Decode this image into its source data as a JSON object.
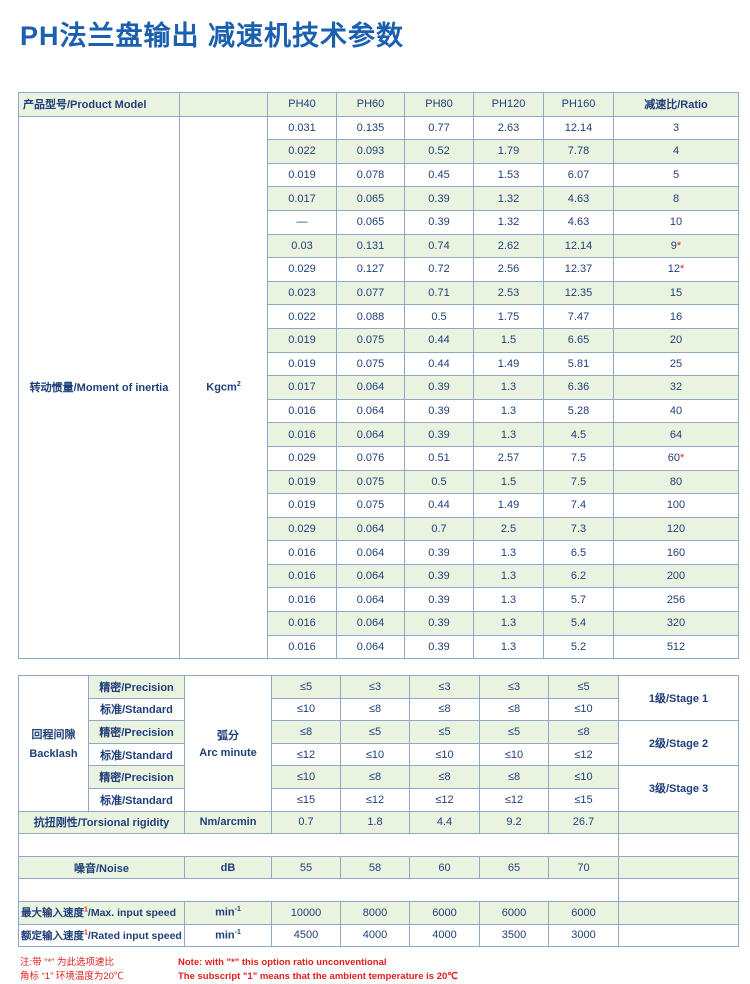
{
  "title": "PH法兰盘输出 减速机技术参数",
  "colors": {
    "title": "#1a5fb0",
    "text": "#1f3f7a",
    "stripe": "#eaf3df",
    "note": "#e0201b"
  },
  "t1": {
    "model_label": "产品型号/Product Model",
    "models": [
      "PH40",
      "PH60",
      "PH80",
      "PH120",
      "PH160"
    ],
    "ratio_label": "减速比/Ratio",
    "inertia_label": "转动惯量/Moment of inertia",
    "inertia_unit": "Kgcm",
    "inertia_unit_sup": "2",
    "rows": [
      {
        "v": [
          "0.031",
          "0.135",
          "0.77",
          "2.63",
          "12.14"
        ],
        "r": "3",
        "s": ""
      },
      {
        "v": [
          "0.022",
          "0.093",
          "0.52",
          "1.79",
          "7.78"
        ],
        "r": "4",
        "s": ""
      },
      {
        "v": [
          "0.019",
          "0.078",
          "0.45",
          "1.53",
          "6.07"
        ],
        "r": "5",
        "s": ""
      },
      {
        "v": [
          "0.017",
          "0.065",
          "0.39",
          "1.32",
          "4.63"
        ],
        "r": "8",
        "s": ""
      },
      {
        "v": [
          "—",
          "0.065",
          "0.39",
          "1.32",
          "4.63"
        ],
        "r": "10",
        "s": ""
      },
      {
        "v": [
          "0.03",
          "0.131",
          "0.74",
          "2.62",
          "12.14"
        ],
        "r": "9",
        "s": "*"
      },
      {
        "v": [
          "0.029",
          "0.127",
          "0.72",
          "2.56",
          "12.37"
        ],
        "r": "12",
        "s": "*"
      },
      {
        "v": [
          "0.023",
          "0.077",
          "0.71",
          "2.53",
          "12.35"
        ],
        "r": "15",
        "s": ""
      },
      {
        "v": [
          "0.022",
          "0.088",
          "0.5",
          "1.75",
          "7.47"
        ],
        "r": "16",
        "s": ""
      },
      {
        "v": [
          "0.019",
          "0.075",
          "0.44",
          "1.5",
          "6.65"
        ],
        "r": "20",
        "s": ""
      },
      {
        "v": [
          "0.019",
          "0.075",
          "0.44",
          "1.49",
          "5.81"
        ],
        "r": "25",
        "s": ""
      },
      {
        "v": [
          "0.017",
          "0.064",
          "0.39",
          "1.3",
          "6.36"
        ],
        "r": "32",
        "s": ""
      },
      {
        "v": [
          "0.016",
          "0.064",
          "0.39",
          "1.3",
          "5.28"
        ],
        "r": "40",
        "s": ""
      },
      {
        "v": [
          "0.016",
          "0.064",
          "0.39",
          "1.3",
          "4.5"
        ],
        "r": "64",
        "s": ""
      },
      {
        "v": [
          "0.029",
          "0.076",
          "0.51",
          "2.57",
          "7.5"
        ],
        "r": "60",
        "s": "*"
      },
      {
        "v": [
          "0.019",
          "0.075",
          "0.5",
          "1.5",
          "7.5"
        ],
        "r": "80",
        "s": ""
      },
      {
        "v": [
          "0.019",
          "0.075",
          "0.44",
          "1.49",
          "7.4"
        ],
        "r": "100",
        "s": ""
      },
      {
        "v": [
          "0.029",
          "0.064",
          "0.7",
          "2.5",
          "7.3"
        ],
        "r": "120",
        "s": ""
      },
      {
        "v": [
          "0.016",
          "0.064",
          "0.39",
          "1.3",
          "6.5"
        ],
        "r": "160",
        "s": ""
      },
      {
        "v": [
          "0.016",
          "0.064",
          "0.39",
          "1.3",
          "6.2"
        ],
        "r": "200",
        "s": ""
      },
      {
        "v": [
          "0.016",
          "0.064",
          "0.39",
          "1.3",
          "5.7"
        ],
        "r": "256",
        "s": ""
      },
      {
        "v": [
          "0.016",
          "0.064",
          "0.39",
          "1.3",
          "5.4"
        ],
        "r": "320",
        "s": ""
      },
      {
        "v": [
          "0.016",
          "0.064",
          "0.39",
          "1.3",
          "5.2"
        ],
        "r": "512",
        "s": ""
      }
    ]
  },
  "t2": {
    "backlash_cn": "回程间隙",
    "backlash_en": "Backlash",
    "unit_cn": "弧分",
    "unit_en": "Arc minute",
    "rows": [
      {
        "type": "精密/Precision",
        "v": [
          "≤5",
          "≤3",
          "≤3",
          "≤3",
          "≤5"
        ]
      },
      {
        "type": "标准/Standard",
        "v": [
          "≤10",
          "≤8",
          "≤8",
          "≤8",
          "≤10"
        ]
      },
      {
        "type": "精密/Precision",
        "v": [
          "≤8",
          "≤5",
          "≤5",
          "≤5",
          "≤8"
        ]
      },
      {
        "type": "标准/Standard",
        "v": [
          "≤12",
          "≤10",
          "≤10",
          "≤10",
          "≤12"
        ]
      },
      {
        "type": "精密/Precision",
        "v": [
          "≤10",
          "≤8",
          "≤8",
          "≤8",
          "≤10"
        ]
      },
      {
        "type": "标准/Standard",
        "v": [
          "≤15",
          "≤12",
          "≤12",
          "≤12",
          "≤15"
        ]
      }
    ],
    "stages": [
      "1级/Stage 1",
      "2级/Stage 2",
      "3级/Stage 3"
    ],
    "torsional": {
      "label": "抗扭刚性/Torsional rigidity",
      "unit": "Nm/arcmin",
      "v": [
        "0.7",
        "1.8",
        "4.4",
        "9.2",
        "26.7"
      ]
    },
    "noise": {
      "label": "噪音/Noise",
      "unit": "dB",
      "v": [
        "55",
        "58",
        "60",
        "65",
        "70"
      ]
    },
    "max_speed": {
      "cn": "最大输入速度",
      "sup": "1",
      "en": "/Max. input speed",
      "unit": "min",
      "unit_sup": "-1",
      "v": [
        "10000",
        "8000",
        "6000",
        "6000",
        "6000"
      ]
    },
    "rated_speed": {
      "cn": "额定输入速度",
      "sup": "1",
      "en": "/Rated input speed",
      "unit": "min",
      "unit_sup": "-1",
      "v": [
        "4500",
        "4000",
        "4000",
        "3500",
        "3000"
      ]
    }
  },
  "notes": {
    "cn1": "注:带 “*” 为此选项速比",
    "cn2": "角标 “1” 环境温度为20℃",
    "en1": "Note: with \"*\" this option ratio unconventional",
    "en2": "The subscript \"1\" means that the ambient temperature is 20℃"
  }
}
